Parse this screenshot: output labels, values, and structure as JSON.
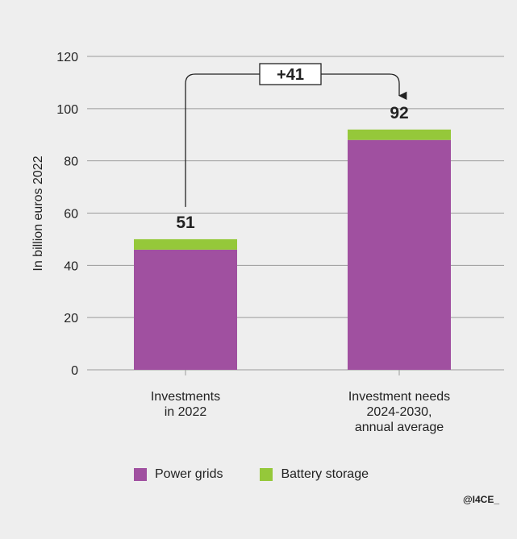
{
  "chart_data": {
    "type": "bar",
    "stacked": true,
    "categories": [
      [
        "Investments",
        "in 2022"
      ],
      [
        "Investment needs",
        "2024-2030,",
        "annual average"
      ]
    ],
    "series": [
      {
        "name": "Power grids",
        "color": "#a050a0",
        "values": [
          46,
          88
        ]
      },
      {
        "name": "Battery storage",
        "color": "#95c83a",
        "values": [
          4,
          4
        ]
      }
    ],
    "totals": [
      "51",
      "92"
    ],
    "difference_label": "+41",
    "ylabel": "In billion euros 2022",
    "ylim": [
      0,
      120
    ],
    "yticks": [
      0,
      20,
      40,
      60,
      80,
      100,
      120
    ],
    "grid": true,
    "legend_position": "bottom"
  },
  "credit": "@I4CE_"
}
